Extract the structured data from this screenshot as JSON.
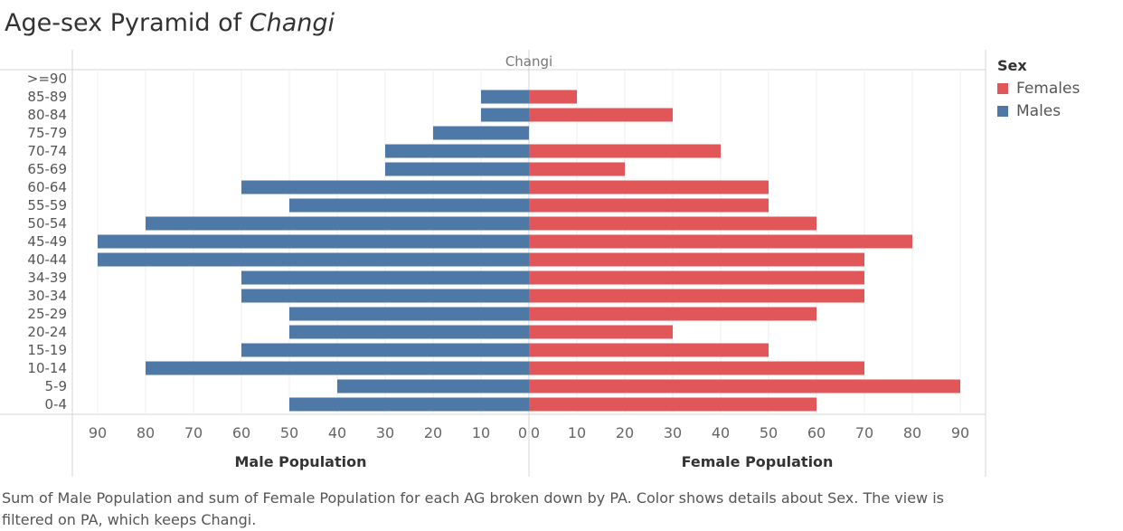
{
  "title": {
    "prefix": "Age-sex Pyramid of ",
    "place": "Changi"
  },
  "colors": {
    "females": "#e15759",
    "males": "#4e79a7"
  },
  "legend": {
    "title": "Sex",
    "items": [
      {
        "label": "Females",
        "color": "#e15759"
      },
      {
        "label": "Males",
        "color": "#4e79a7"
      }
    ]
  },
  "caption": "Sum of Male Population and sum of Female Population for each AG broken down by PA.  Color shows details about Sex. The view is filtered on PA, which keeps Changi.",
  "chart_data": {
    "type": "bar",
    "orientation": "horizontal-pyramid",
    "header": "Changi",
    "categories": [
      ">=90",
      "85-89",
      "80-84",
      "75-79",
      "70-74",
      "65-69",
      "60-64",
      "55-59",
      "50-54",
      "45-49",
      "40-44",
      "34-39",
      "30-34",
      "25-29",
      "20-24",
      "15-19",
      "10-14",
      "5-9",
      "0-4"
    ],
    "series": [
      {
        "name": "Males",
        "axis_label": "Male Population",
        "values": [
          0,
          10,
          10,
          20,
          30,
          30,
          60,
          50,
          80,
          90,
          90,
          60,
          60,
          50,
          50,
          60,
          80,
          40,
          50
        ]
      },
      {
        "name": "Females",
        "axis_label": "Female Population",
        "values": [
          0,
          10,
          30,
          0,
          40,
          20,
          50,
          50,
          60,
          80,
          70,
          70,
          70,
          60,
          30,
          50,
          70,
          90,
          60
        ]
      }
    ],
    "xlim": [
      0,
      95
    ],
    "ticks": [
      0,
      10,
      20,
      30,
      40,
      50,
      60,
      70,
      80,
      90
    ],
    "male_tick_labels": [
      "90",
      "80",
      "70",
      "60",
      "50",
      "40",
      "30",
      "20",
      "10",
      "0"
    ],
    "female_tick_labels": [
      "0",
      "10",
      "20",
      "30",
      "40",
      "50",
      "60",
      "70",
      "80",
      "90"
    ],
    "grid": true,
    "legend_position": "right"
  }
}
